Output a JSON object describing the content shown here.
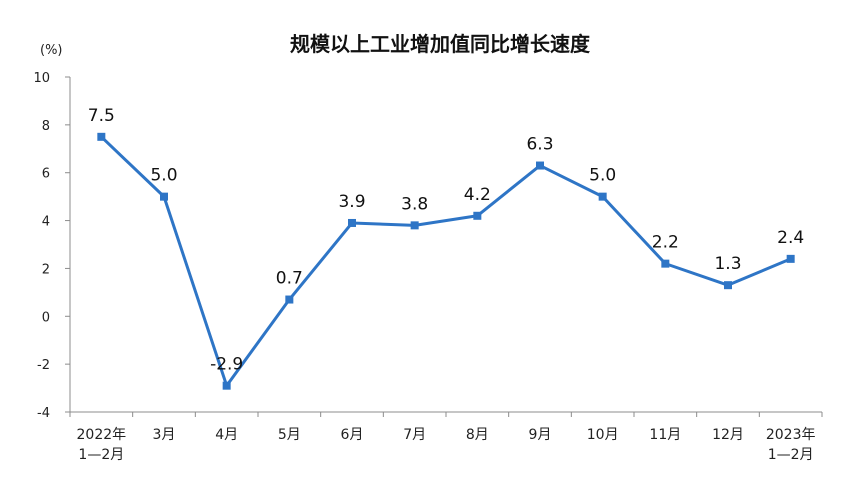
{
  "chart_data": {
    "type": "line",
    "title": "规模以上工业增加值同比增长速度",
    "unit_label": "(%)",
    "categories": [
      [
        "2022年",
        "1—2月"
      ],
      [
        "3月"
      ],
      [
        "4月"
      ],
      [
        "5月"
      ],
      [
        "6月"
      ],
      [
        "7月"
      ],
      [
        "8月"
      ],
      [
        "9月"
      ],
      [
        "10月"
      ],
      [
        "11月"
      ],
      [
        "12月"
      ],
      [
        "2023年",
        "1—2月"
      ]
    ],
    "series": [
      {
        "values": [
          7.5,
          5.0,
          -2.9,
          0.7,
          3.9,
          3.8,
          4.2,
          6.3,
          5.0,
          2.2,
          1.3,
          2.4
        ],
        "labels": [
          "7.5",
          "5.0",
          "-2.9",
          "0.7",
          "3.9",
          "3.8",
          "4.2",
          "6.3",
          "5.0",
          "2.2",
          "1.3",
          "2.4"
        ]
      }
    ],
    "yticks": [
      "10",
      "8",
      "6",
      "4",
      "2",
      "0",
      "-2",
      "-4"
    ],
    "ylim": [
      -4,
      10
    ],
    "grid": false,
    "line_color": "#2E75C6",
    "marker": "square"
  }
}
